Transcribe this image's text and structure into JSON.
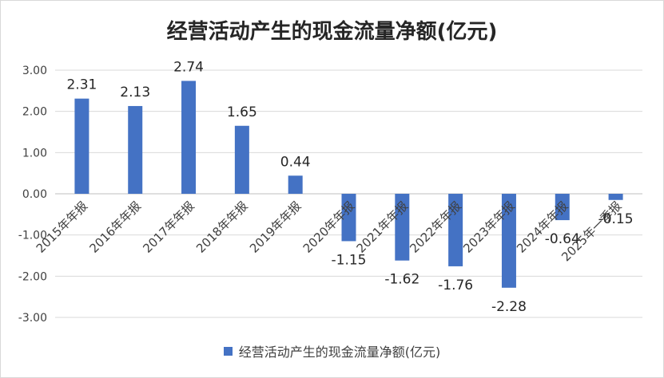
{
  "chart_data": {
    "type": "bar",
    "title": "经营活动产生的现金流量净额(亿元)",
    "categories": [
      "2015年年报",
      "2016年年报",
      "2017年年报",
      "2018年年报",
      "2019年年报",
      "2020年年报",
      "2021年年报",
      "2022年年报",
      "2023年年报",
      "2024年年报",
      "2025年一季报"
    ],
    "series": [
      {
        "name": "经营活动产生的现金流量净额(亿元)",
        "values": [
          2.31,
          2.13,
          2.74,
          1.65,
          0.44,
          -1.15,
          -1.62,
          -1.76,
          -2.28,
          -0.64,
          -0.15
        ],
        "labels": [
          "2.31",
          "2.13",
          "2.74",
          "1.65",
          "0.44",
          "-1.15",
          "-1.62",
          "-1.76",
          "-2.28",
          "-0.64",
          "-0.15"
        ]
      }
    ],
    "y_ticks": [
      "3.00",
      "2.00",
      "1.00",
      "0.00",
      "-1.00",
      "-2.00",
      "-3.00"
    ],
    "ylim": [
      -3,
      3
    ],
    "grid": true,
    "legend_position": "bottom",
    "bar_color": "#4472C4"
  }
}
